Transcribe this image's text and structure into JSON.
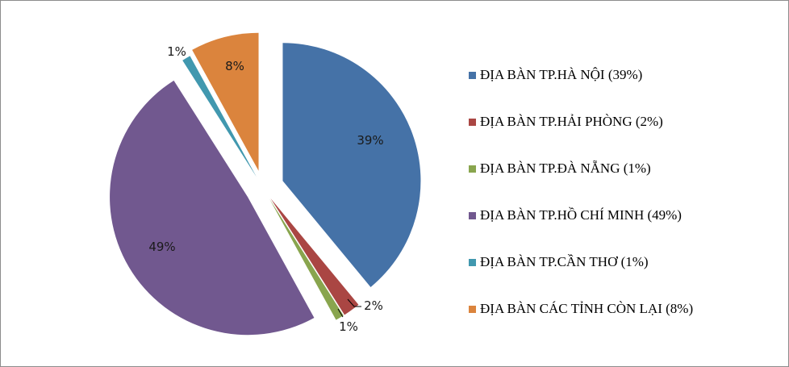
{
  "chart_data": {
    "type": "pie",
    "title": "",
    "slices": [
      {
        "label": "ĐỊA BÀN TP.HÀ NỘI (39%)",
        "value": 39,
        "display": "39%",
        "color": "#4572a7"
      },
      {
        "label": "ĐỊA BÀN TP.HẢI PHÒNG (2%)",
        "value": 2,
        "display": "2%",
        "color": "#aa4643"
      },
      {
        "label": "ĐỊA BÀN TP.ĐÀ NẴNG (1%)",
        "value": 1,
        "display": "1%",
        "color": "#89a54e"
      },
      {
        "label": "ĐỊA BÀN TP.HỒ CHÍ MINH (49%)",
        "value": 49,
        "display": "49%",
        "color": "#71588f"
      },
      {
        "label": "ĐỊA BÀN TP.CẦN THƠ (1%)",
        "value": 1,
        "display": "1%",
        "color": "#4198af"
      },
      {
        "label": "ĐỊA BÀN CÁC TỈNH CÒN LẠI (8%)",
        "value": 8,
        "display": "8%",
        "color": "#db843d"
      }
    ],
    "legend_position": "right"
  }
}
